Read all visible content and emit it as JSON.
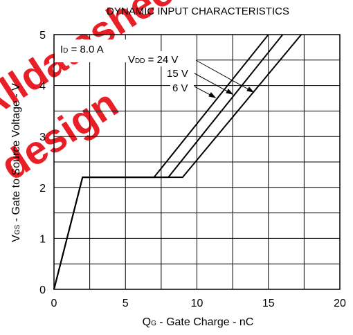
{
  "watermark": {
    "lines": [
      "Alldatasheet",
      "design"
    ],
    "color": "#e8141c"
  },
  "chart_data": {
    "type": "line",
    "title": "DYNAMIC INPUT CHARACTERISTICS",
    "xlabel_main": "Q",
    "xlabel_sub": "G",
    "xlabel_rest": " - Gate Charge - nC",
    "ylabel_main": "V",
    "ylabel_sub": "GS",
    "ylabel_rest": " - Gate to Source Voltage - V",
    "xlim": [
      0,
      20
    ],
    "ylim": [
      0,
      5
    ],
    "x_ticks": [
      "0",
      "5",
      "10",
      "15",
      "20"
    ],
    "y_ticks": [
      "0",
      "1",
      "2",
      "3",
      "4",
      "5"
    ],
    "grid": true,
    "condition": {
      "main": "I",
      "sub": "D",
      "rest": " = 8.0 A"
    },
    "vdd_label": {
      "main": "V",
      "sub": "DD",
      "rest": " = 24 V"
    },
    "series": [
      {
        "name": "24 V",
        "label": "V_DD = 24 V",
        "x": [
          0,
          2,
          7,
          15
        ],
        "y": [
          0,
          2.2,
          2.2,
          5
        ]
      },
      {
        "name": "15 V",
        "label": "15 V",
        "x": [
          0,
          2,
          8,
          16
        ],
        "y": [
          0,
          2.2,
          2.2,
          5
        ]
      },
      {
        "name": "6 V",
        "label": "6 V",
        "x": [
          0,
          2,
          9,
          17.3
        ],
        "y": [
          0,
          2.2,
          2.2,
          5
        ]
      }
    ],
    "series_labels": [
      "15 V",
      "6 V"
    ]
  }
}
